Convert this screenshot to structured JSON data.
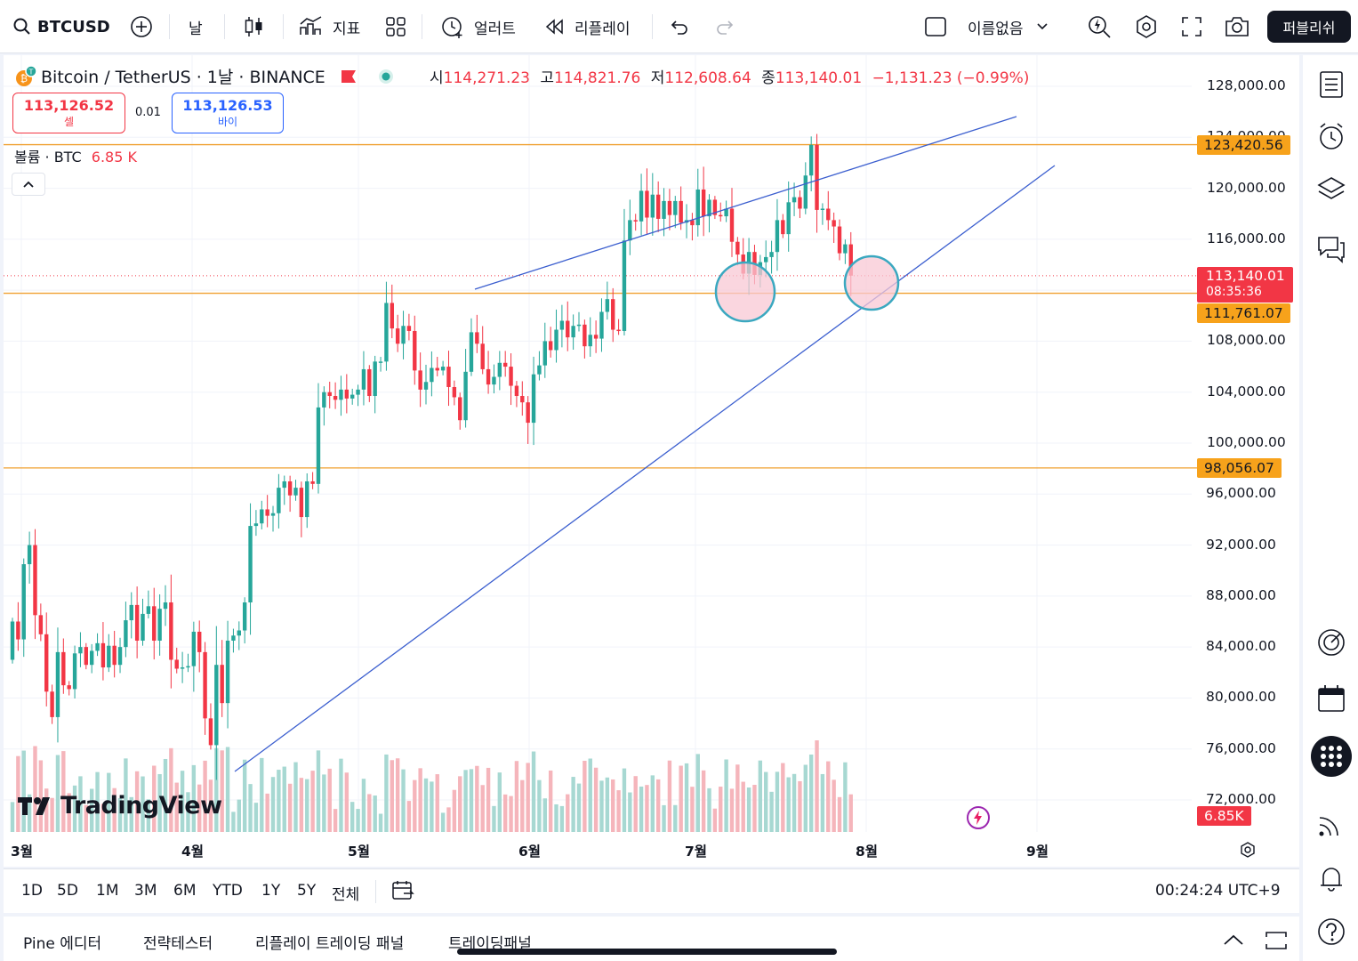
{
  "toolbar": {
    "symbol": "BTCUSD",
    "interval": "날",
    "indicators_label": "지표",
    "alert_label": "얼러트",
    "replay_label": "리플레이",
    "layout_name": "이름없음",
    "publish_label": "퍼블리쉬"
  },
  "legend": {
    "title": "Bitcoin / TetherUS · 1날 · BINANCE",
    "open_label": "시",
    "open": "114,271.23",
    "high_label": "고",
    "high": "114,821.76",
    "low_label": "저",
    "low": "112,608.64",
    "close_label": "종",
    "close": "113,140.01",
    "change": "−1,131.23 (−0.99%)",
    "sell_price": "113,126.52",
    "sell_label": "셀",
    "spread": "0.01",
    "buy_price": "113,126.53",
    "buy_label": "바이",
    "volume_label": "볼륨 · BTC",
    "volume_value": "6.85 K"
  },
  "price_axis": {
    "ticks": [
      "128,000.00",
      "124,000.00",
      "120,000.00",
      "116,000.00",
      "112,000.00",
      "108,000.00",
      "104,000.00",
      "100,000.00",
      "96,000.00",
      "92,000.00",
      "88,000.00",
      "84,000.00",
      "80,000.00",
      "76,000.00",
      "72,000.00"
    ],
    "tags": {
      "resistance": "123,420.56",
      "last_price": "113,140.01",
      "countdown": "08:35:36",
      "support_mid": "111,761.07",
      "support_low": "98,056.07",
      "volume": "6.85K"
    }
  },
  "time_axis": {
    "months": [
      "3월",
      "4월",
      "5월",
      "6월",
      "7월",
      "8월",
      "9월"
    ]
  },
  "timeframes": [
    "1D",
    "5D",
    "1M",
    "3M",
    "6M",
    "YTD",
    "1Y",
    "5Y",
    "전체"
  ],
  "clock": "00:24:24 UTC+9",
  "bottom_tabs": [
    "Pine 에디터",
    "전략테스터",
    "리플레이 트레이딩 패널",
    "트레이딩패널"
  ],
  "brand": "TradingView",
  "colors": {
    "up": "#26a69a",
    "down": "#f23645",
    "trend": "#3c5fcf",
    "hline": "#f0a030",
    "circle_fill": "#f8c8d4",
    "circle_stroke": "#3aa8c0"
  },
  "chart_data": {
    "type": "candlestick",
    "x_range": [
      "2025-03-01",
      "2025-09-01"
    ],
    "ylim": [
      72000,
      128000
    ],
    "horizontal_lines": [
      123420.56,
      111761.07,
      98056.07
    ],
    "last_price": 113140.01,
    "candles_close": [
      86000,
      84600,
      90500,
      92000,
      86500,
      85000,
      80500,
      78500,
      83600,
      81000,
      80700,
      83500,
      84000,
      82600,
      83700,
      84300,
      82400,
      84100,
      82600,
      84000,
      86100,
      87300,
      84500,
      86600,
      87200,
      84500,
      87000,
      87500,
      83000,
      82300,
      82400,
      82500,
      85200,
      83600,
      78400,
      76300,
      82600,
      79600,
      84500,
      84900,
      85300,
      87500,
      93500,
      93700,
      94800,
      94300,
      94500,
      96500,
      97000,
      95900,
      96500,
      94200,
      97000,
      96800,
      102800,
      104000,
      103700,
      103400,
      104200,
      103500,
      103800,
      104200,
      105800,
      103700,
      106400,
      106400,
      111000,
      109000,
      107800,
      109200,
      108800,
      105700,
      104200,
      104800,
      105900,
      105700,
      106000,
      104400,
      103600,
      101800,
      105600,
      108700,
      107800,
      105800,
      104600,
      105200,
      106300,
      106000,
      104500,
      103700,
      103200,
      101600,
      105400,
      106100,
      108000,
      107300,
      108900,
      109600,
      108300,
      109200,
      109300,
      107600,
      108500,
      108200,
      110300,
      111300,
      108900,
      108800,
      115900,
      117500,
      117400,
      119800,
      117700,
      119500,
      117600,
      119000,
      117900,
      119000,
      117300,
      117500,
      117100,
      119900,
      117800,
      119100,
      117900,
      117800,
      118400,
      115800,
      114800,
      113300,
      115000,
      113200,
      114200,
      114600,
      115000,
      117500,
      116400,
      118900,
      119300,
      118400,
      121000,
      123400,
      118300,
      118400,
      117500,
      117000,
      114900,
      115600,
      113140
    ],
    "volume_peak_k": 60
  }
}
